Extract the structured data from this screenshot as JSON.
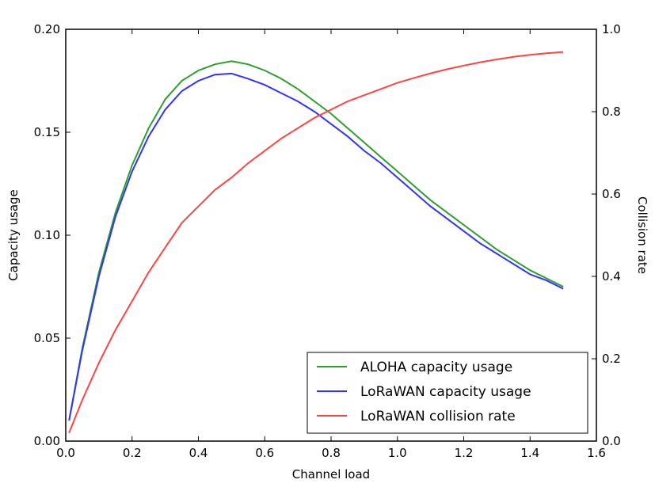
{
  "chart_data": {
    "type": "line",
    "xlabel": "Channel load",
    "ylabel": "Capacity usage",
    "y2label": "Collision rate",
    "xlim": [
      0,
      1.6
    ],
    "ylim": [
      0,
      0.2
    ],
    "y2lim": [
      0,
      1.0
    ],
    "x_ticks": [
      "0.0",
      "0.2",
      "0.4",
      "0.6",
      "0.8",
      "1.0",
      "1.2",
      "1.4",
      "1.6"
    ],
    "y_ticks": [
      "0.00",
      "0.05",
      "0.10",
      "0.15",
      "0.20"
    ],
    "y2_ticks": [
      "0.0",
      "0.2",
      "0.4",
      "0.6",
      "0.8",
      "1.0"
    ],
    "grid": false,
    "legend_position": "bottom-right",
    "x": [
      0.01,
      0.05,
      0.1,
      0.15,
      0.2,
      0.25,
      0.3,
      0.35,
      0.4,
      0.45,
      0.5,
      0.55,
      0.6,
      0.65,
      0.7,
      0.75,
      0.8,
      0.85,
      0.9,
      0.95,
      1.0,
      1.05,
      1.1,
      1.15,
      1.2,
      1.25,
      1.3,
      1.35,
      1.4,
      1.45,
      1.5
    ],
    "series": [
      {
        "name": "ALOHA capacity usage",
        "axis": "left",
        "color": "#2ca02c",
        "values": [
          0.01,
          0.045,
          0.082,
          0.111,
          0.134,
          0.152,
          0.166,
          0.175,
          0.18,
          0.183,
          0.1845,
          0.183,
          0.18,
          0.176,
          0.171,
          0.165,
          0.159,
          0.152,
          0.145,
          0.138,
          0.131,
          0.124,
          0.117,
          0.111,
          0.105,
          0.099,
          0.093,
          0.088,
          0.083,
          0.079,
          0.075
        ]
      },
      {
        "name": "LoRaWAN capacity usage",
        "axis": "left",
        "color": "#3333ff",
        "values": [
          0.01,
          0.044,
          0.08,
          0.109,
          0.131,
          0.148,
          0.161,
          0.17,
          0.175,
          0.178,
          0.1785,
          0.176,
          0.173,
          0.169,
          0.165,
          0.16,
          0.154,
          0.148,
          0.141,
          0.135,
          0.128,
          0.121,
          0.114,
          0.108,
          0.102,
          0.096,
          0.091,
          0.086,
          0.081,
          0.078,
          0.074
        ]
      },
      {
        "name": "LoRaWAN collision rate",
        "axis": "right",
        "color": "#ff4444",
        "values": [
          0.02,
          0.1,
          0.19,
          0.27,
          0.34,
          0.41,
          0.47,
          0.53,
          0.57,
          0.61,
          0.64,
          0.675,
          0.705,
          0.735,
          0.76,
          0.785,
          0.805,
          0.825,
          0.84,
          0.855,
          0.87,
          0.882,
          0.893,
          0.903,
          0.912,
          0.92,
          0.927,
          0.933,
          0.938,
          0.942,
          0.945
        ]
      }
    ]
  }
}
